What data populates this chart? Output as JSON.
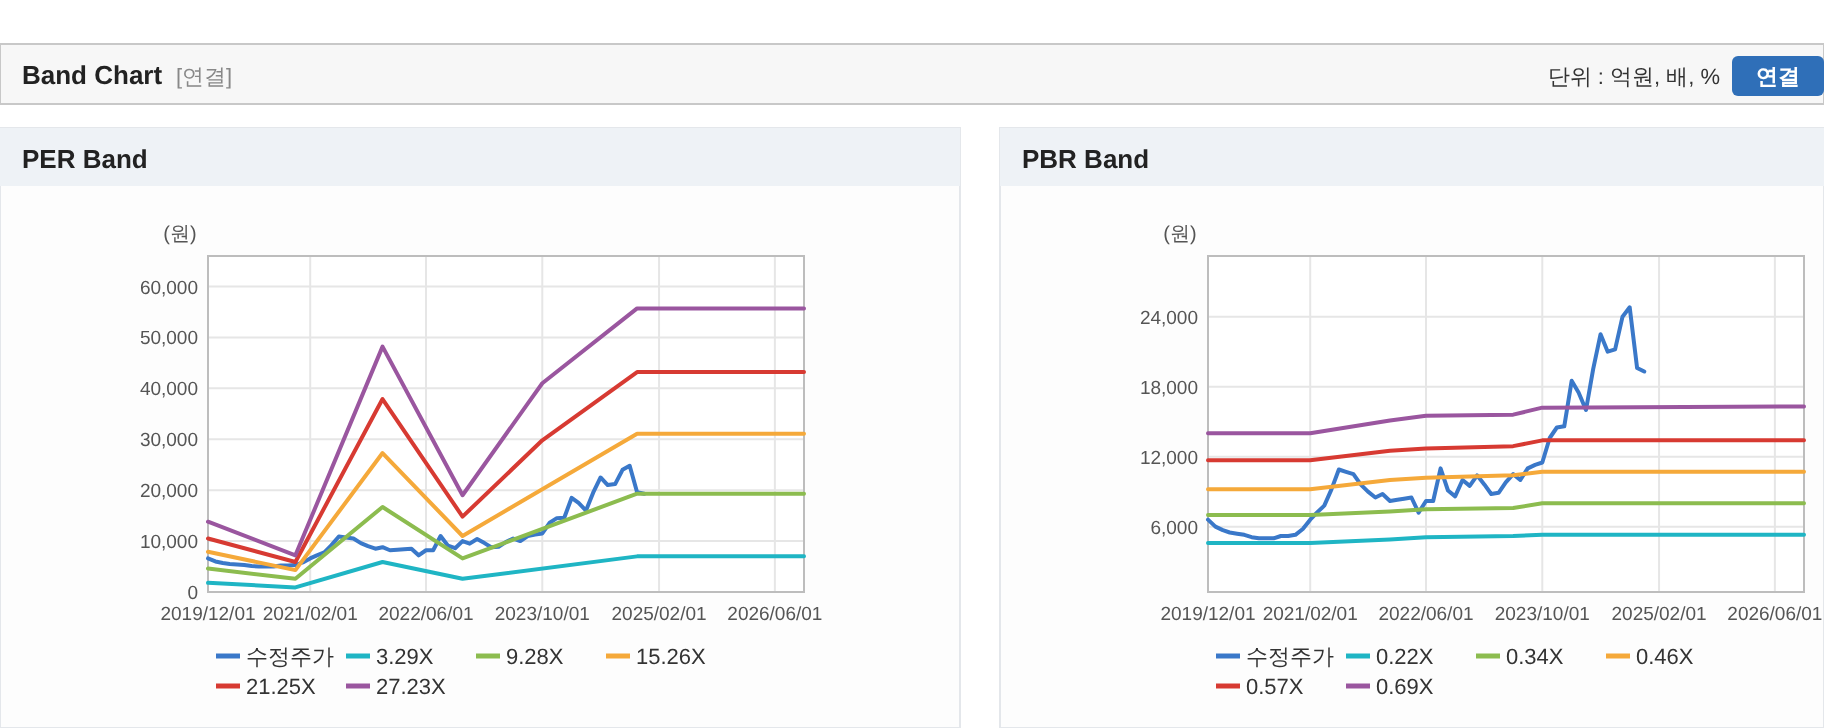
{
  "chart_data": [
    {
      "type": "line",
      "title": "PER Band",
      "ylabel": "(원)",
      "annotations": [
        "Band Chart",
        "[연결]",
        "단위 : 억원, 배, %",
        "연결"
      ],
      "xlim": [
        "2019-12-01",
        "2026-10-01"
      ],
      "xticks": [
        {
          "value": "2019-12-01",
          "label": "2019/12/01"
        },
        {
          "value": "2021-02-01",
          "label": "2021/02/01"
        },
        {
          "value": "2022-06-01",
          "label": "2022/06/01"
        },
        {
          "value": "2023-10-01",
          "label": "2023/10/01"
        },
        {
          "value": "2025-02-01",
          "label": "2025/02/01"
        },
        {
          "value": "2026-06-01",
          "label": "2026/06/01"
        }
      ],
      "ylim": [
        0,
        66000
      ],
      "yticks": [
        0,
        {
          "value": 10000,
          "label": "10,000"
        },
        {
          "value": 20000,
          "label": "20,000"
        },
        {
          "value": 30000,
          "label": "30,000"
        },
        {
          "value": 40000,
          "label": "40,000"
        },
        {
          "value": 50000,
          "label": "50,000"
        },
        {
          "value": 60000,
          "label": "60,000"
        }
      ],
      "grid": true,
      "legend": "bottom",
      "series": [
        {
          "name": "수정주가",
          "color": "#3a78c9",
          "x": [
            "2019-12",
            "2020-01",
            "2020-02",
            "2020-03",
            "2020-04",
            "2020-05",
            "2020-06",
            "2020-07",
            "2020-08",
            "2020-09",
            "2020-10",
            "2020-11",
            "2020-12",
            "2021-01",
            "2021-02",
            "2021-03",
            "2021-04",
            "2021-05",
            "2021-06",
            "2021-07",
            "2021-08",
            "2021-09",
            "2021-10",
            "2021-11",
            "2021-12",
            "2022-01",
            "2022-02",
            "2022-03",
            "2022-04",
            "2022-05",
            "2022-06",
            "2022-07",
            "2022-08",
            "2022-09",
            "2022-10",
            "2022-11",
            "2022-12",
            "2023-01",
            "2023-02",
            "2023-03",
            "2023-04",
            "2023-05",
            "2023-06",
            "2023-07",
            "2023-08",
            "2023-09",
            "2023-10",
            "2023-11",
            "2023-12",
            "2024-01",
            "2024-02",
            "2024-03",
            "2024-04",
            "2024-05",
            "2024-06",
            "2024-07",
            "2024-08",
            "2024-09",
            "2024-10",
            "2024-11",
            "2024-12"
          ],
          "values": [
            6600,
            6000,
            5700,
            5500,
            5400,
            5300,
            5100,
            5000,
            5000,
            5000,
            5200,
            5200,
            5300,
            5800,
            6600,
            7200,
            7800,
            9200,
            10900,
            10700,
            10500,
            9600,
            9000,
            8500,
            8800,
            8200,
            8300,
            8400,
            8500,
            7200,
            8200,
            8200,
            11000,
            9100,
            8600,
            10000,
            9500,
            10400,
            9600,
            8800,
            8900,
            9800,
            10500,
            10000,
            11000,
            11300,
            11500,
            13600,
            14500,
            14600,
            18500,
            17500,
            16000,
            19500,
            22500,
            21000,
            21200,
            24000,
            24800,
            19600,
            19300
          ]
        },
        {
          "name": "3.29X",
          "color": "#1fb5c4",
          "x": [
            "2019-12",
            "2020-12",
            "2021-12",
            "2022-11",
            "2024-11",
            "2026-10"
          ],
          "values": [
            1800,
            900,
            5900,
            2600,
            7000,
            7000
          ]
        },
        {
          "name": "9.28X",
          "color": "#8cbc4f",
          "x": [
            "2019-12",
            "2020-12",
            "2021-12",
            "2022-11",
            "2024-11",
            "2026-10"
          ],
          "values": [
            4600,
            2600,
            16700,
            6600,
            19300,
            19300
          ]
        },
        {
          "name": "15.26X",
          "color": "#f5a93a",
          "x": [
            "2019-12",
            "2020-12",
            "2021-12",
            "2022-11",
            "2024-11",
            "2026-10"
          ],
          "values": [
            7900,
            4300,
            27300,
            11000,
            31100,
            31100
          ]
        },
        {
          "name": "21.25X",
          "color": "#d73a32",
          "x": [
            "2019-12",
            "2020-12",
            "2021-12",
            "2022-11",
            "2023-10",
            "2024-11",
            "2026-10"
          ],
          "values": [
            10500,
            5900,
            37900,
            14800,
            29800,
            43200,
            43200
          ]
        },
        {
          "name": "27.23X",
          "color": "#9a569f",
          "x": [
            "2019-12",
            "2020-12",
            "2021-12",
            "2022-11",
            "2023-08",
            "2023-10",
            "2024-11",
            "2026-10"
          ],
          "values": [
            13800,
            7200,
            48200,
            19000,
            37000,
            41000,
            55700,
            55700
          ]
        }
      ]
    },
    {
      "type": "line",
      "title": "PBR Band",
      "ylabel": "(원)",
      "xlim": [
        "2019-12-01",
        "2026-10-01"
      ],
      "xticks": [
        {
          "value": "2019-12-01",
          "label": "2019/12/01"
        },
        {
          "value": "2021-02-01",
          "label": "2021/02/01"
        },
        {
          "value": "2022-06-01",
          "label": "2022/06/01"
        },
        {
          "value": "2023-10-01",
          "label": "2023/10/01"
        },
        {
          "value": "2025-02-01",
          "label": "2025/02/01"
        },
        {
          "value": "2026-06-01",
          "label": "2026/06/01"
        }
      ],
      "ylim": [
        400,
        29200
      ],
      "yticks": [
        {
          "value": 6000,
          "label": "6,000"
        },
        {
          "value": 12000,
          "label": "12,000"
        },
        {
          "value": 18000,
          "label": "18,000"
        },
        {
          "value": 24000,
          "label": "24,000"
        }
      ],
      "grid": true,
      "legend": "bottom",
      "series": [
        {
          "name": "수정주가",
          "color": "#3a78c9",
          "x": [
            "2019-12",
            "2020-01",
            "2020-02",
            "2020-03",
            "2020-04",
            "2020-05",
            "2020-06",
            "2020-07",
            "2020-08",
            "2020-09",
            "2020-10",
            "2020-11",
            "2020-12",
            "2021-01",
            "2021-02",
            "2021-03",
            "2021-04",
            "2021-05",
            "2021-06",
            "2021-07",
            "2021-08",
            "2021-09",
            "2021-10",
            "2021-11",
            "2021-12",
            "2022-01",
            "2022-02",
            "2022-03",
            "2022-04",
            "2022-05",
            "2022-06",
            "2022-07",
            "2022-08",
            "2022-09",
            "2022-10",
            "2022-11",
            "2022-12",
            "2023-01",
            "2023-02",
            "2023-03",
            "2023-04",
            "2023-05",
            "2023-06",
            "2023-07",
            "2023-08",
            "2023-09",
            "2023-10",
            "2023-11",
            "2023-12",
            "2024-01",
            "2024-02",
            "2024-03",
            "2024-04",
            "2024-05",
            "2024-06",
            "2024-07",
            "2024-08",
            "2024-09",
            "2024-10",
            "2024-11",
            "2024-12"
          ],
          "values": [
            6600,
            6000,
            5700,
            5500,
            5400,
            5300,
            5100,
            5000,
            5000,
            5000,
            5200,
            5200,
            5300,
            5800,
            6600,
            7200,
            7800,
            9200,
            10900,
            10700,
            10500,
            9600,
            9000,
            8500,
            8800,
            8200,
            8300,
            8400,
            8500,
            7200,
            8200,
            8200,
            11000,
            9100,
            8600,
            10000,
            9500,
            10400,
            9600,
            8800,
            8900,
            9800,
            10500,
            10000,
            11000,
            11300,
            11500,
            13600,
            14500,
            14600,
            18500,
            17500,
            16000,
            19500,
            22500,
            21000,
            21200,
            24000,
            24800,
            19600,
            19300
          ]
        },
        {
          "name": "0.22X",
          "color": "#1fb5c4",
          "x": [
            "2019-12",
            "2021-02",
            "2022-01",
            "2022-06",
            "2023-06",
            "2023-10",
            "2026-10"
          ],
          "values": [
            4600,
            4600,
            4900,
            5100,
            5200,
            5300,
            5300
          ]
        },
        {
          "name": "0.34X",
          "color": "#8cbc4f",
          "x": [
            "2019-12",
            "2021-02",
            "2022-01",
            "2022-06",
            "2023-06",
            "2023-10",
            "2026-10"
          ],
          "values": [
            7000,
            7000,
            7300,
            7500,
            7600,
            8000,
            8000
          ]
        },
        {
          "name": "0.46X",
          "color": "#f5a93a",
          "x": [
            "2019-12",
            "2021-02",
            "2022-01",
            "2022-06",
            "2023-06",
            "2023-10",
            "2026-10"
          ],
          "values": [
            9200,
            9200,
            10000,
            10200,
            10400,
            10700,
            10700
          ]
        },
        {
          "name": "0.57X",
          "color": "#d73a32",
          "x": [
            "2019-12",
            "2021-02",
            "2022-01",
            "2022-06",
            "2023-06",
            "2023-10",
            "2026-10"
          ],
          "values": [
            11700,
            11700,
            12500,
            12700,
            12900,
            13400,
            13400
          ]
        },
        {
          "name": "0.69X",
          "color": "#9a569f",
          "x": [
            "2019-12",
            "2021-02",
            "2022-01",
            "2022-06",
            "2023-06",
            "2023-10",
            "2026-10"
          ],
          "values": [
            14000,
            14000,
            15100,
            15500,
            15600,
            16200,
            16300
          ]
        }
      ]
    }
  ]
}
